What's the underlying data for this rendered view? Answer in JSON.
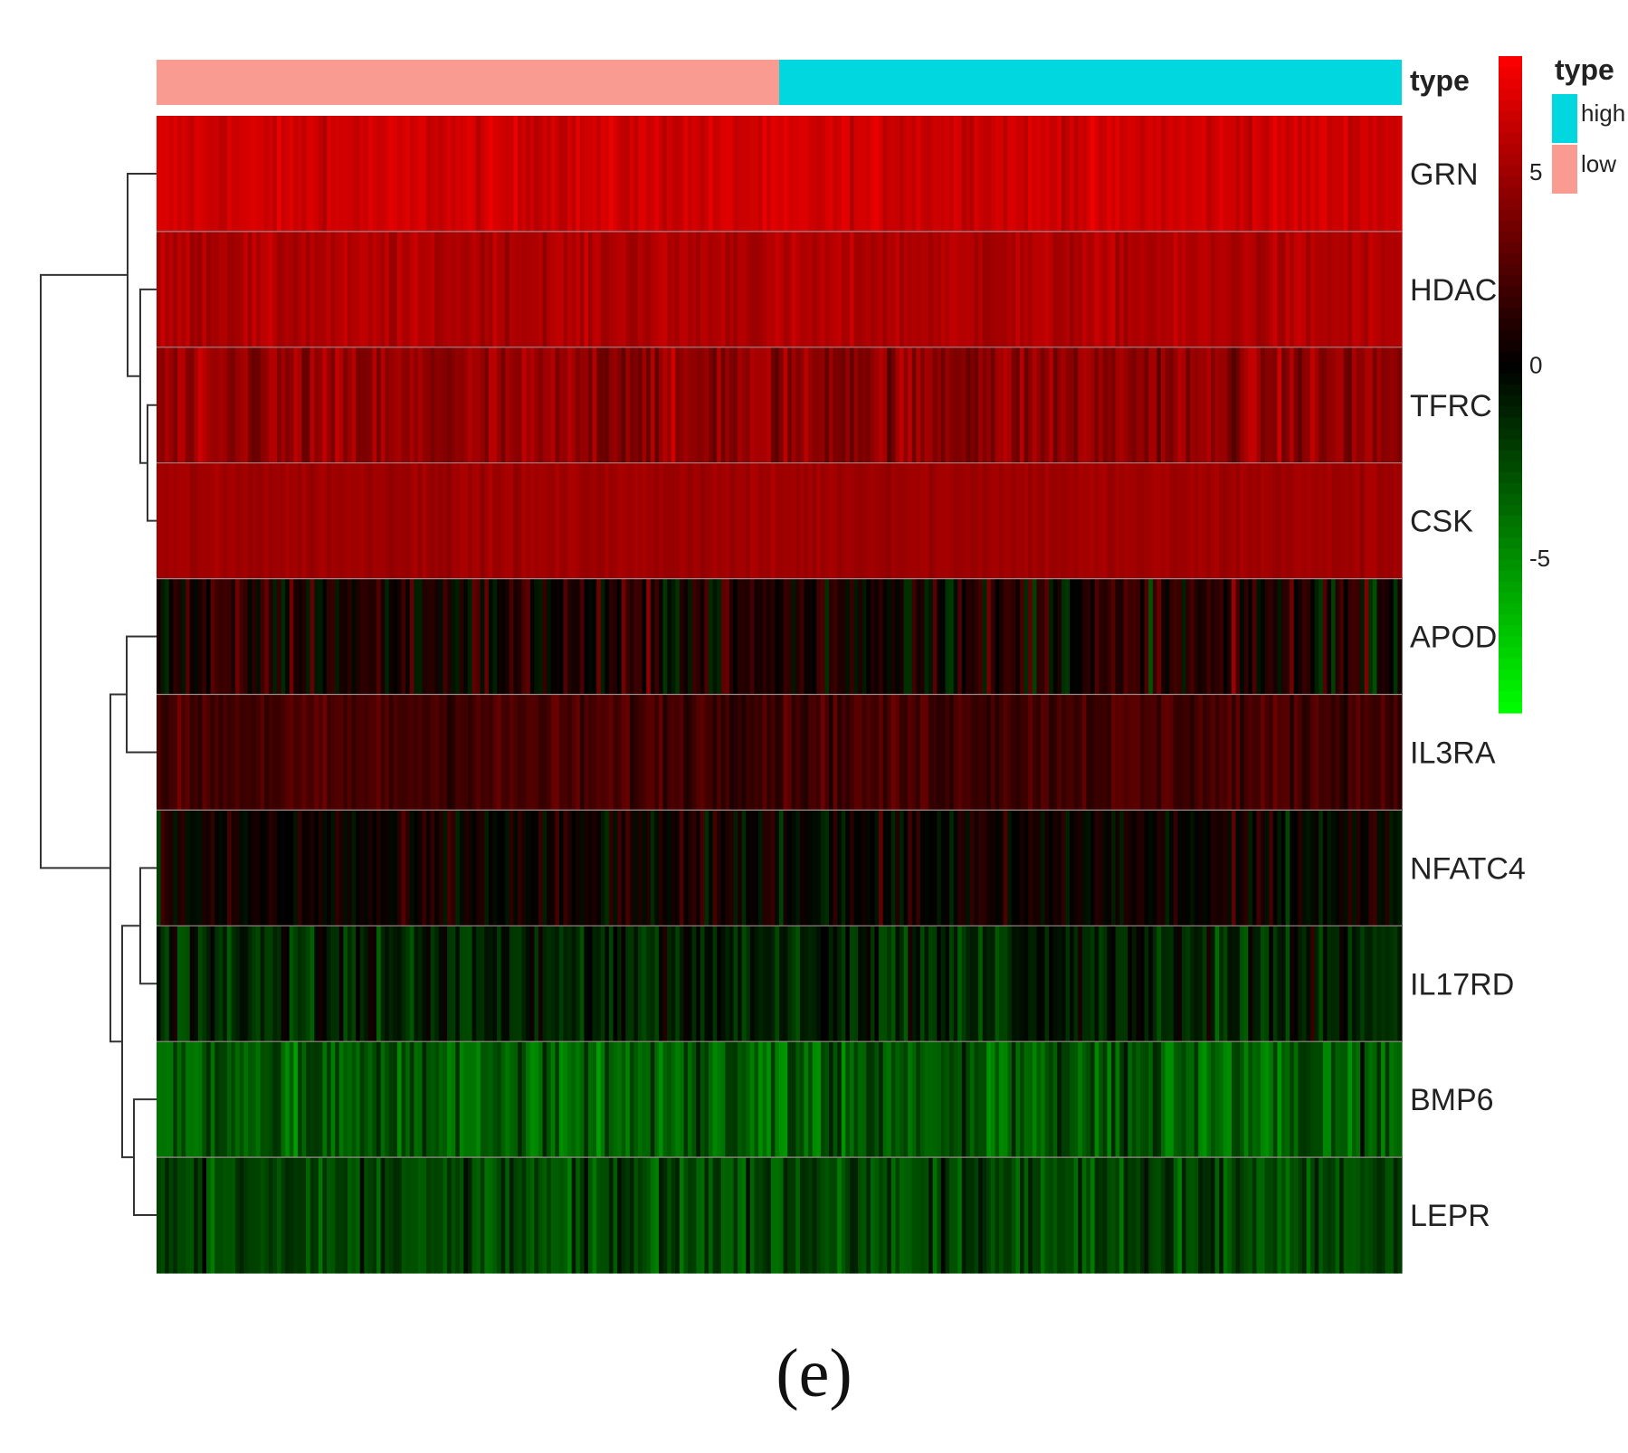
{
  "panel_label": "(e)",
  "chart_data": {
    "type": "heatmap",
    "rows": [
      "GRN",
      "HDAC1",
      "TFRC",
      "CSK",
      "APOD",
      "IL3RA",
      "NFATC4",
      "IL17RD",
      "BMP6",
      "LEPR"
    ],
    "row_means": [
      6.5,
      5.5,
      4.5,
      5.0,
      0.8,
      2.2,
      0.2,
      -1.2,
      -3.2,
      -2.4
    ],
    "row_spread": [
      0.7,
      0.7,
      1.4,
      0.4,
      2.4,
      1.0,
      1.7,
      1.8,
      1.9,
      1.7
    ],
    "n_samples": 300,
    "annotation": {
      "label": "type",
      "groups": [
        {
          "name": "low",
          "count": 150,
          "color": "#fa9b91"
        },
        {
          "name": "high",
          "count": 150,
          "color": "#00d7de"
        }
      ]
    },
    "color_scale": {
      "min": -9,
      "max": 8,
      "low_color": "#00ff00",
      "mid_color": "#000000",
      "high_color": "#ff0000",
      "ticks": [
        5,
        0,
        -5
      ],
      "tick_labels": [
        "5",
        "0",
        "-5"
      ]
    },
    "legend": {
      "title": "type",
      "items": [
        {
          "name": "high",
          "color": "#00d7de"
        },
        {
          "name": "low",
          "color": "#fa9b91"
        }
      ]
    },
    "dendrogram": {
      "merges": [
        [
          2,
          3
        ],
        [
          1,
          10
        ],
        [
          0,
          11
        ],
        [
          6,
          7
        ],
        [
          8,
          9
        ],
        [
          13,
          14
        ],
        [
          4,
          5
        ],
        [
          16,
          15
        ],
        [
          12,
          17
        ]
      ]
    }
  }
}
